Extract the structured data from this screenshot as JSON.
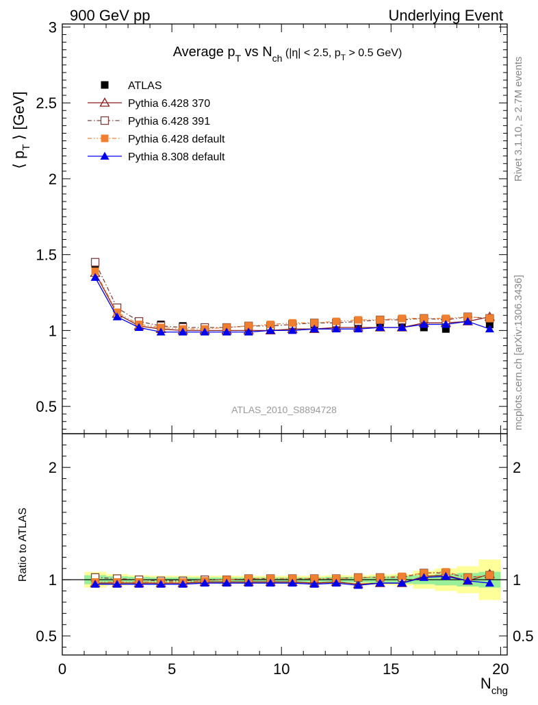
{
  "header": {
    "left": "900 GeV pp",
    "right": "Underlying Event"
  },
  "side_text": {
    "rivet": "Rivet 3.1.10, ≥ 2.7M events",
    "mcplots": "mcplots.cern.ch [arXiv:1306.3436]"
  },
  "chart_data": [
    {
      "type": "scatter",
      "panel": "main",
      "title_parts": {
        "a": "Average p",
        "a_sub": "T",
        "b": " vs N",
        "b_sub": "ch",
        "c": " (|η| < 2.5, p",
        "c_sub": "T",
        "d": " > 0.5 GeV)"
      },
      "ylabel_parts": {
        "a": "⟨ p",
        "sub": "T",
        "b": " ⟩ [GeV]"
      },
      "xlim": [
        0,
        20.3
      ],
      "ylim": [
        0.32,
        3.02
      ],
      "yticks": [
        0.5,
        1,
        1.5,
        2,
        2.5,
        3
      ],
      "ytick_labels": [
        "0.5",
        "1",
        "1.5",
        "2",
        "2.5",
        "3"
      ],
      "watermark": "ATLAS_2010_S8894728",
      "legend_position": "top-left",
      "x": [
        1.5,
        2.5,
        3.5,
        4.5,
        5.5,
        6.5,
        7.5,
        8.5,
        9.5,
        10.5,
        11.5,
        12.5,
        13.5,
        14.5,
        15.5,
        16.5,
        17.5,
        18.5,
        19.5
      ],
      "series": [
        {
          "name": "ATLAS",
          "color": "#000000",
          "marker": "filled-square",
          "line": "none",
          "values": [
            1.42,
            1.14,
            1.06,
            1.04,
            1.03,
            1.02,
            1.02,
            1.02,
            1.02,
            1.03,
            1.04,
            1.04,
            1.04,
            1.05,
            1.05,
            1.02,
            1.01,
            1.07,
            1.04
          ]
        },
        {
          "name": "Pythia 6.428 370",
          "color": "#8b1a1a",
          "marker": "open-triangle",
          "line": "solid",
          "values": [
            1.38,
            1.11,
            1.03,
            1.01,
            1.0,
            1.0,
            1.0,
            1.0,
            1.0,
            1.01,
            1.01,
            1.02,
            1.02,
            1.02,
            1.02,
            1.05,
            1.05,
            1.06,
            1.09
          ]
        },
        {
          "name": "Pythia 6.428 391",
          "color": "#7a4040",
          "marker": "open-square",
          "line": "dashdot",
          "values": [
            1.45,
            1.15,
            1.06,
            1.03,
            1.02,
            1.02,
            1.02,
            1.03,
            1.03,
            1.04,
            1.05,
            1.05,
            1.06,
            1.07,
            1.07,
            1.08,
            1.07,
            1.09,
            1.08
          ]
        },
        {
          "name": "Pythia 6.428 default",
          "color": "#f08030",
          "marker": "filled-square",
          "line": "dashdotdot",
          "values": [
            1.39,
            1.12,
            1.04,
            1.02,
            1.01,
            1.01,
            1.02,
            1.03,
            1.04,
            1.05,
            1.05,
            1.06,
            1.07,
            1.07,
            1.08,
            1.08,
            1.08,
            1.09,
            1.08
          ]
        },
        {
          "name": "Pythia 8.308 default",
          "color": "#0000ee",
          "marker": "filled-triangle",
          "line": "solid",
          "values": [
            1.35,
            1.09,
            1.02,
            0.99,
            0.99,
            0.99,
            0.99,
            0.99,
            1.0,
            1.0,
            1.01,
            1.01,
            1.01,
            1.02,
            1.02,
            1.04,
            1.04,
            1.06,
            1.01
          ]
        }
      ]
    },
    {
      "type": "scatter",
      "panel": "ratio",
      "ylabel": "Ratio to ATLAS",
      "xlabel_parts": {
        "a": "N",
        "sub": "chg"
      },
      "xlim": [
        0,
        20.3
      ],
      "ylim": [
        0.33,
        2.3
      ],
      "yticks": [
        0.5,
        1,
        2
      ],
      "ytick_labels": [
        "0.5",
        "1",
        "2"
      ],
      "xticks": [
        0,
        5,
        10,
        15,
        20
      ],
      "xtick_labels": [
        "0",
        "5",
        "10",
        "15",
        "20"
      ],
      "bands": {
        "x_low": [
          1,
          2,
          3,
          4,
          5,
          6,
          7,
          8,
          9,
          10,
          11,
          12,
          13,
          14,
          15,
          16,
          17,
          18,
          19
        ],
        "x_high": [
          2,
          3,
          4,
          5,
          6,
          7,
          8,
          9,
          10,
          11,
          12,
          13,
          14,
          15,
          16,
          17,
          18,
          19,
          20
        ],
        "stat": [
          0.04,
          0.03,
          0.025,
          0.02,
          0.02,
          0.02,
          0.02,
          0.02,
          0.02,
          0.02,
          0.02,
          0.025,
          0.025,
          0.03,
          0.035,
          0.04,
          0.05,
          0.06,
          0.07
        ],
        "total": [
          0.07,
          0.05,
          0.04,
          0.035,
          0.035,
          0.035,
          0.035,
          0.035,
          0.035,
          0.035,
          0.035,
          0.04,
          0.04,
          0.045,
          0.05,
          0.08,
          0.1,
          0.12,
          0.18
        ],
        "stat_color": "#99ee99",
        "total_color": "#ffff99"
      },
      "x": [
        1.5,
        2.5,
        3.5,
        4.5,
        5.5,
        6.5,
        7.5,
        8.5,
        9.5,
        10.5,
        11.5,
        12.5,
        13.5,
        14.5,
        15.5,
        16.5,
        17.5,
        18.5,
        19.5
      ],
      "series": [
        {
          "color": "#8b1a1a",
          "marker": "open-triangle",
          "line": "solid",
          "values": [
            0.97,
            0.97,
            0.97,
            0.97,
            0.97,
            0.98,
            0.98,
            0.98,
            0.98,
            0.98,
            0.97,
            0.98,
            0.96,
            0.97,
            0.97,
            1.03,
            1.04,
            0.99,
            1.05
          ]
        },
        {
          "color": "#7a4040",
          "marker": "open-square",
          "line": "dashdot",
          "values": [
            1.02,
            1.01,
            1.0,
            0.99,
            0.99,
            1.0,
            1.0,
            1.01,
            1.01,
            1.01,
            1.01,
            1.01,
            1.02,
            1.02,
            1.02,
            1.06,
            1.06,
            1.02,
            1.04
          ]
        },
        {
          "color": "#f08030",
          "marker": "filled-square",
          "line": "dashdotdot",
          "values": [
            0.98,
            0.98,
            0.98,
            0.98,
            0.98,
            0.99,
            1.0,
            1.01,
            1.01,
            1.01,
            1.01,
            1.01,
            1.02,
            1.02,
            1.03,
            1.06,
            1.07,
            1.02,
            1.04
          ]
        },
        {
          "color": "#0000ee",
          "marker": "filled-triangle",
          "line": "solid",
          "values": [
            0.96,
            0.96,
            0.96,
            0.96,
            0.96,
            0.97,
            0.97,
            0.97,
            0.97,
            0.97,
            0.96,
            0.97,
            0.95,
            0.97,
            0.97,
            1.02,
            1.03,
            0.99,
            0.97
          ]
        }
      ]
    }
  ]
}
